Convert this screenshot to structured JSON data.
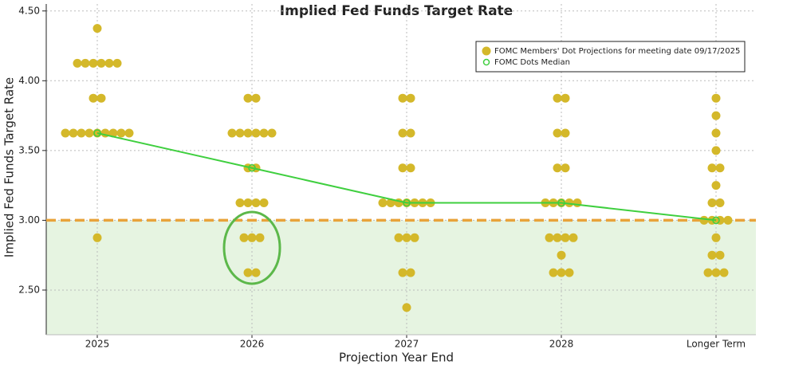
{
  "chart_data": {
    "type": "dot",
    "title": "Implied Fed Funds Target Rate",
    "y_label": "Implied Fed Funds Target Rate",
    "x_label": "Projection Year End",
    "categories": [
      "2025",
      "2026",
      "2027",
      "2028",
      "Longer Term"
    ],
    "series": [
      {
        "name": "FOMC Members' Dot Projections for meeting date 09/17/2025",
        "color": "#d4b82a",
        "values": [
          [
            4.375,
            4.125,
            4.125,
            4.125,
            4.125,
            4.125,
            4.125,
            3.875,
            3.875,
            3.625,
            3.625,
            3.625,
            3.625,
            3.625,
            3.625,
            3.625,
            3.625,
            3.625,
            2.875
          ],
          [
            3.875,
            3.875,
            3.625,
            3.625,
            3.625,
            3.625,
            3.625,
            3.625,
            3.375,
            3.375,
            3.125,
            3.125,
            3.125,
            3.125,
            2.875,
            2.875,
            2.875,
            2.625,
            2.625
          ],
          [
            3.875,
            3.875,
            3.625,
            3.625,
            3.375,
            3.375,
            3.125,
            3.125,
            3.125,
            3.125,
            3.125,
            3.125,
            3.125,
            2.875,
            2.875,
            2.875,
            2.625,
            2.625,
            2.375
          ],
          [
            3.875,
            3.875,
            3.625,
            3.625,
            3.375,
            3.375,
            3.125,
            3.125,
            3.125,
            3.125,
            3.125,
            2.875,
            2.875,
            2.875,
            2.875,
            2.75,
            2.625,
            2.625,
            2.625
          ],
          [
            3.875,
            3.75,
            3.625,
            3.5,
            3.375,
            3.375,
            3.25,
            3.125,
            3.125,
            3.0,
            3.0,
            3.0,
            3.0,
            2.875,
            2.75,
            2.75,
            2.625,
            2.625,
            2.625
          ]
        ]
      },
      {
        "name": "FOMC Dots Median",
        "color": "#3fcf3f",
        "values": [
          3.625,
          3.375,
          3.125,
          3.125,
          3.0
        ]
      }
    ],
    "reference_line": {
      "value": 3.0,
      "color": "#e8a33a",
      "fill": "#e6f4e1"
    },
    "ylim": [
      2.18,
      4.55
    ],
    "yticks": [
      {
        "value": 2.5,
        "label": "2.50"
      },
      {
        "value": 3.0,
        "label": "3.00"
      },
      {
        "value": 3.5,
        "label": "3.50"
      },
      {
        "value": 4.0,
        "label": "4.00"
      },
      {
        "value": 4.5,
        "label": "4.50"
      }
    ],
    "grid": true,
    "legend": "top-right"
  }
}
